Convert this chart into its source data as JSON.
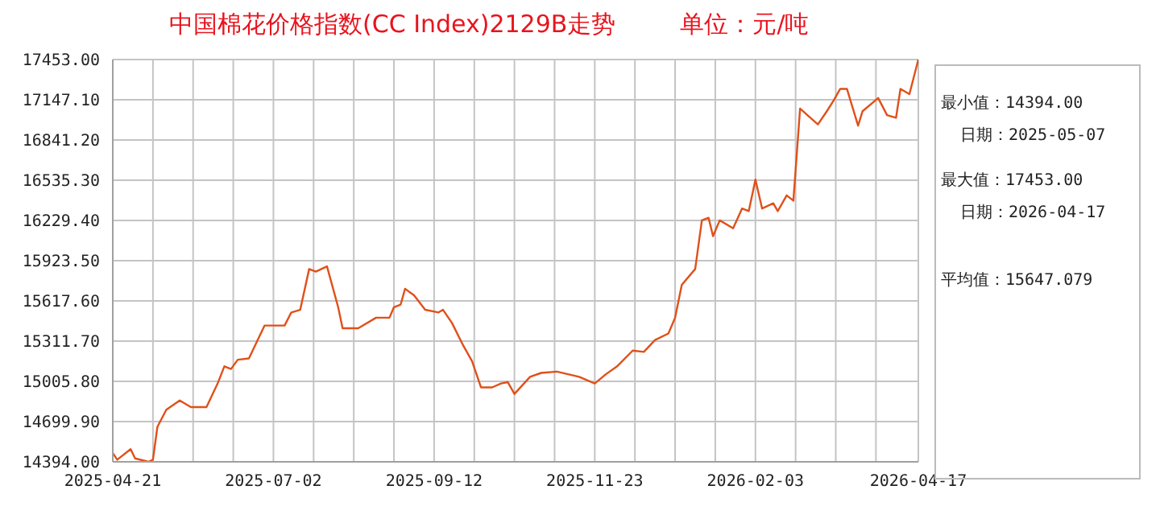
{
  "chart_data": {
    "type": "line",
    "title": "中国棉花价格指数(CC Index)2129B走势",
    "subtitle": "单位：元/吨",
    "annotations": [
      "最小值：14394.00",
      "日期：2025-05-07",
      "最大值：17453.00",
      "日期：2026-04-17",
      "平均值：15647.079"
    ],
    "x": [
      "2025-04-21",
      "2025-04-23",
      "2025-04-29",
      "2025-05-01",
      "2025-05-07",
      "2025-05-09",
      "2025-05-11",
      "2025-05-15",
      "2025-05-21",
      "2025-05-26",
      "2025-06-02",
      "2025-06-07",
      "2025-06-10",
      "2025-06-13",
      "2025-06-16",
      "2025-06-21",
      "2025-06-28",
      "2025-07-07",
      "2025-07-10",
      "2025-07-14",
      "2025-07-18",
      "2025-07-21",
      "2025-07-26",
      "2025-07-31",
      "2025-08-02",
      "2025-08-09",
      "2025-08-17",
      "2025-08-23",
      "2025-08-25",
      "2025-08-28",
      "2025-08-30",
      "2025-09-03",
      "2025-09-08",
      "2025-09-14",
      "2025-09-16",
      "2025-09-20",
      "2025-09-25",
      "2025-09-29",
      "2025-10-03",
      "2025-10-08",
      "2025-10-12",
      "2025-10-15",
      "2025-10-18",
      "2025-10-25",
      "2025-10-30",
      "2025-11-06",
      "2025-11-11",
      "2025-11-16",
      "2025-11-23",
      "2025-11-28",
      "2025-12-03",
      "2025-12-10",
      "2025-12-15",
      "2025-12-20",
      "2025-12-26",
      "2025-12-29",
      "2026-01-01",
      "2026-01-07",
      "2026-01-10",
      "2026-01-13",
      "2026-01-15",
      "2026-01-18",
      "2026-01-24",
      "2026-01-28",
      "2026-01-31",
      "2026-02-03",
      "2026-02-06",
      "2026-02-11",
      "2026-02-13",
      "2026-02-17",
      "2026-02-20",
      "2026-02-21",
      "2026-02-23",
      "2026-02-27",
      "2026-03-03",
      "2026-03-07",
      "2026-03-10",
      "2026-03-13",
      "2026-03-16",
      "2026-03-21",
      "2026-03-23",
      "2026-03-30",
      "2026-04-03",
      "2026-04-07",
      "2026-04-09",
      "2026-04-13",
      "2026-04-17"
    ],
    "series": [
      {
        "color": "#e0501a",
        "values": [
          14460,
          14410,
          14490,
          14420,
          14394,
          14410,
          14660,
          14790,
          14860,
          14810,
          14810,
          14990,
          15120,
          15100,
          15170,
          15180,
          15430,
          15430,
          15530,
          15550,
          15860,
          15840,
          15880,
          15570,
          15410,
          15410,
          15490,
          15490,
          15570,
          15590,
          15710,
          15660,
          15550,
          15530,
          15550,
          15450,
          15280,
          15160,
          14960,
          14960,
          14990,
          15000,
          14910,
          15040,
          15070,
          15080,
          15060,
          15040,
          14990,
          15060,
          15120,
          15240,
          15230,
          15320,
          15370,
          15490,
          15740,
          15860,
          16230,
          16250,
          16110,
          16230,
          16170,
          16320,
          16300,
          16540,
          16320,
          16360,
          16300,
          16420,
          16380,
          16610,
          17080,
          17020,
          16960,
          17060,
          17140,
          17230,
          17230,
          16950,
          17060,
          17160,
          17030,
          17010,
          17230,
          17190,
          17453
        ]
      }
    ],
    "xlim": [
      "2025-04-21",
      "2026-04-17"
    ],
    "xticks": [
      {
        "value": "2025-04-21",
        "label": "2025-04-21"
      },
      {
        "value": "2025-05-09",
        "label": null
      },
      {
        "value": "2025-05-27",
        "label": null
      },
      {
        "value": "2025-06-14",
        "label": null
      },
      {
        "value": "2025-07-02",
        "label": "2025-07-02"
      },
      {
        "value": "2025-07-20",
        "label": null
      },
      {
        "value": "2025-08-07",
        "label": null
      },
      {
        "value": "2025-08-25",
        "label": null
      },
      {
        "value": "2025-09-12",
        "label": "2025-09-12"
      },
      {
        "value": "2025-09-30",
        "label": null
      },
      {
        "value": "2025-10-18",
        "label": null
      },
      {
        "value": "2025-11-05",
        "label": null
      },
      {
        "value": "2025-11-23",
        "label": "2025-11-23"
      },
      {
        "value": "2025-12-11",
        "label": null
      },
      {
        "value": "2025-12-29",
        "label": null
      },
      {
        "value": "2026-01-16",
        "label": null
      },
      {
        "value": "2026-02-03",
        "label": "2026-02-03"
      },
      {
        "value": "2026-02-21",
        "label": null
      },
      {
        "value": "2026-03-11",
        "label": null
      },
      {
        "value": "2026-03-29",
        "label": null
      },
      {
        "value": "2026-04-17",
        "label": "2026-04-17"
      }
    ],
    "ylim": [
      14394,
      17453
    ],
    "yticks": [
      {
        "value": 14394,
        "label": "14394.00"
      },
      {
        "value": 14699.9,
        "label": "14699.90"
      },
      {
        "value": 15005.8,
        "label": "15005.80"
      },
      {
        "value": 15311.7,
        "label": "15311.70"
      },
      {
        "value": 15617.6,
        "label": "15617.60"
      },
      {
        "value": 15923.5,
        "label": "15923.50"
      },
      {
        "value": 16229.4,
        "label": "16229.40"
      },
      {
        "value": 16535.3,
        "label": "16535.30"
      },
      {
        "value": 16841.2,
        "label": "16841.20"
      },
      {
        "value": 17147.1,
        "label": "17147.10"
      },
      {
        "value": 17453,
        "label": "17453.00"
      }
    ],
    "grid": true,
    "marker": "none"
  }
}
